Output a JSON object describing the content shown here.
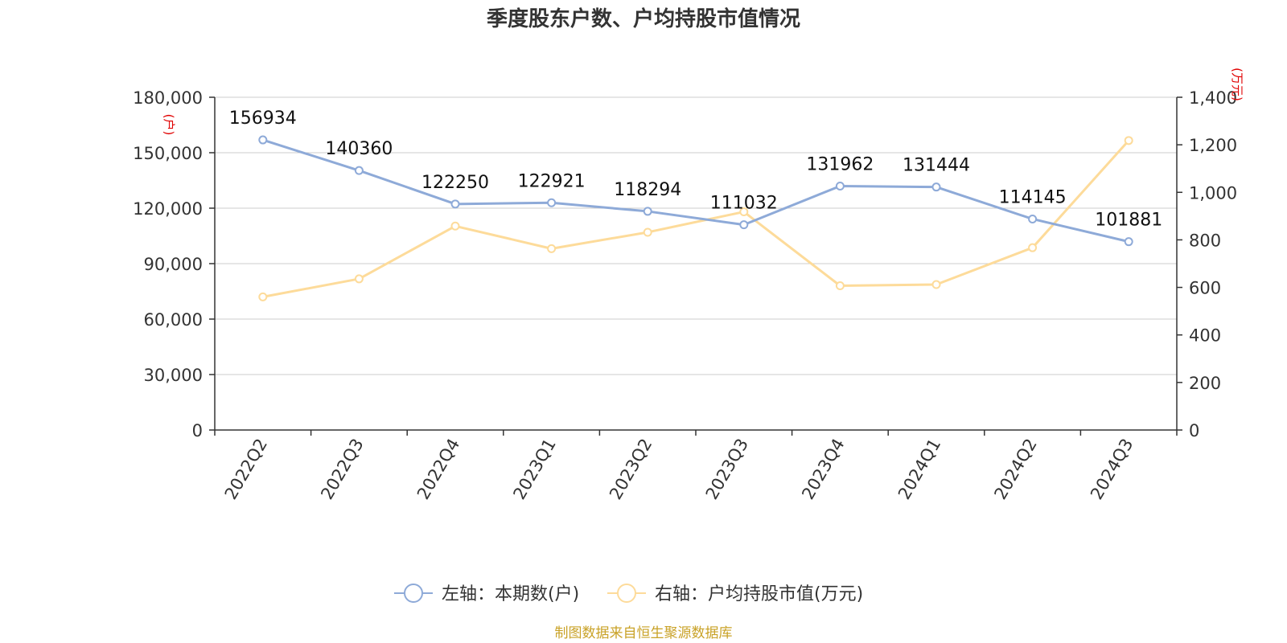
{
  "title": "季度股东户数、户均持股市值情况",
  "source": "制图数据来自恒生聚源数据库",
  "colors": {
    "left_series": "#8eaad8",
    "right_series": "#fddb9a",
    "axis": "#333333",
    "grid": "#cccccc",
    "unit_label": "#e00000",
    "source": "#c9a227"
  },
  "chart_data": {
    "type": "line",
    "title": "季度股东户数、户均持股市值情况",
    "categories": [
      "2022Q2",
      "2022Q3",
      "2022Q4",
      "2023Q1",
      "2023Q2",
      "2023Q3",
      "2023Q4",
      "2024Q1",
      "2024Q2",
      "2024Q3"
    ],
    "y_left": {
      "unit": "(户)",
      "min": 0,
      "max": 180000,
      "ticks": [
        "0",
        "30,000",
        "60,000",
        "90,000",
        "120,000",
        "150,000",
        "180,000"
      ],
      "tick_values": [
        0,
        30000,
        60000,
        90000,
        120000,
        150000,
        180000
      ]
    },
    "y_right": {
      "unit": "(万元)",
      "min": 0,
      "max": 1400,
      "ticks": [
        "0",
        "200",
        "400",
        "600",
        "800",
        "1,000",
        "1,200",
        "1,400"
      ],
      "tick_values": [
        0,
        200,
        400,
        600,
        800,
        1000,
        1200,
        1400
      ]
    },
    "grid": true,
    "legend_position": "bottom",
    "series": [
      {
        "name": "左轴：本期数(户)",
        "axis": "left",
        "values": [
          156934,
          140360,
          122250,
          122921,
          118294,
          111032,
          131962,
          131444,
          114145,
          101881
        ],
        "labels": [
          "156934",
          "140360",
          "122250",
          "122921",
          "118294",
          "111032",
          "131962",
          "131444",
          "114145",
          "101881"
        ]
      },
      {
        "name": "右轴：户均持股市值(万元)",
        "axis": "right",
        "values": [
          560,
          636,
          858,
          763,
          832,
          918,
          607,
          612,
          767,
          1218
        ]
      }
    ]
  }
}
